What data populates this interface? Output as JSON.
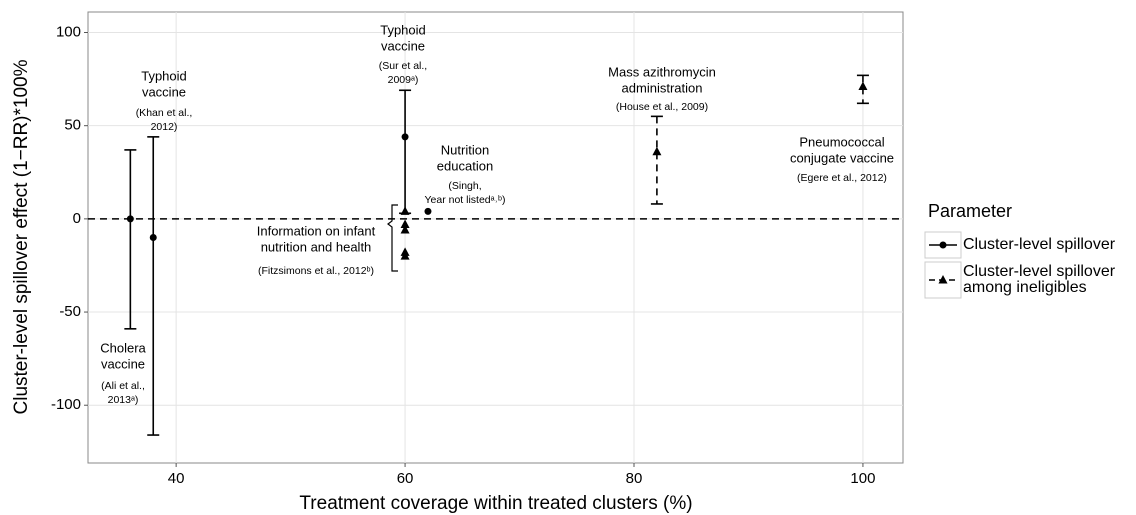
{
  "chart_data": {
    "type": "errorbar-scatter",
    "xlabel": "Treatment coverage within treated clusters (%)",
    "ylabel": "Cluster-level spillover effect (1−RR)*100%",
    "xlim": [
      32.3,
      103.5
    ],
    "ylim": [
      -131,
      111
    ],
    "xticks": [
      40,
      60,
      80,
      100
    ],
    "yticks": [
      -100,
      -50,
      0,
      50,
      100
    ],
    "grid": true,
    "hline": 0,
    "legend_title": "Parameter",
    "series": [
      {
        "name": "Cluster-level spillover",
        "color": "#000000",
        "marker": "circle",
        "dashed": false,
        "x": [
          36,
          38,
          60,
          62
        ],
        "values": [
          0,
          -10,
          44,
          4
        ],
        "upper": [
          37,
          44,
          69,
          null
        ],
        "lower": [
          -59,
          -116,
          3,
          null
        ]
      },
      {
        "name": "Cluster-level spillover among ineligibles",
        "color": "#000000",
        "marker": "triangle",
        "dashed": true,
        "x": [
          60,
          60,
          60,
          60,
          60,
          82,
          100
        ],
        "values": [
          4,
          -3,
          -6,
          -18,
          -20,
          36,
          71
        ],
        "upper": [
          null,
          null,
          null,
          null,
          null,
          55,
          77
        ],
        "lower": [
          null,
          null,
          null,
          null,
          null,
          8,
          62
        ]
      }
    ],
    "annotations": [
      {
        "title": [
          "Typhoid",
          "vaccine"
        ],
        "source": [
          "(Khan et al.,",
          "2012)"
        ]
      },
      {
        "title": [
          "Cholera",
          "vaccine"
        ],
        "source": [
          "(Ali et al.,",
          "2013ᵃ)"
        ]
      },
      {
        "title": [
          "Typhoid",
          "vaccine"
        ],
        "source": [
          "(Sur et al.,",
          "2009ᵃ)"
        ]
      },
      {
        "title": [
          "Nutrition",
          "education"
        ],
        "source": [
          "(Singh,",
          "Year not listedᵃ˒ᵇ)"
        ]
      },
      {
        "title": [
          "Information on infant",
          "nutrition and health"
        ],
        "source": [
          "(Fitzsimons et al., 2012ᵇ)"
        ]
      },
      {
        "title": [
          "Mass azithromycin",
          "administration"
        ],
        "source": [
          "(House et al., 2009)"
        ]
      },
      {
        "title": [
          "Pneumococcal",
          "conjugate vaccine"
        ],
        "source": [
          "(Egere et al., 2012)"
        ]
      }
    ]
  }
}
